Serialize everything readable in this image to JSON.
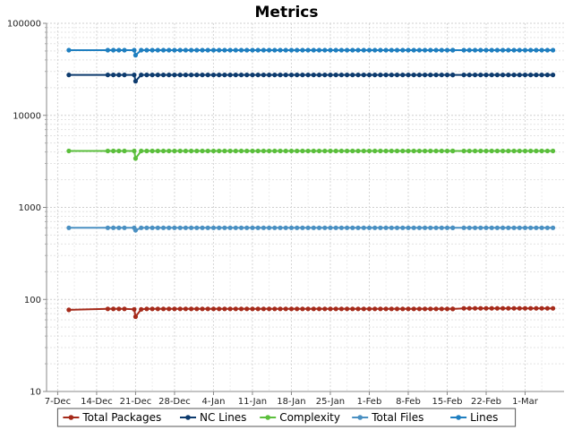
{
  "chart_data": {
    "type": "line",
    "title": "Metrics",
    "xlabel": "",
    "ylabel": "",
    "y_scale": "log",
    "ylim": [
      10,
      100000
    ],
    "xlim": [
      "2009-12-05",
      "2010-03-08"
    ],
    "y_ticks": [
      10,
      100,
      1000,
      10000,
      100000
    ],
    "y_tick_labels": [
      "10",
      "100",
      "1000",
      "10000",
      "100000"
    ],
    "x_ticks": [
      "2009-12-07",
      "2009-12-14",
      "2009-12-21",
      "2009-12-28",
      "2010-01-04",
      "2010-01-11",
      "2010-01-18",
      "2010-01-25",
      "2010-02-01",
      "2010-02-08",
      "2010-02-15",
      "2010-02-22",
      "2010-03-01"
    ],
    "x_tick_labels": [
      "7-Dec",
      "14-Dec",
      "21-Dec",
      "28-Dec",
      "4-Jan",
      "11-Jan",
      "18-Jan",
      "25-Jan",
      "1-Feb",
      "8-Feb",
      "15-Feb",
      "22-Feb",
      "1-Mar"
    ],
    "grid": true,
    "legend_position": "bottom",
    "dip_date": "2009-12-21",
    "series": [
      {
        "name": "Total Packages",
        "color": "#a52a1a",
        "points": [
          [
            "2009-12-09",
            77
          ],
          [
            "2009-12-16",
            79
          ],
          [
            "2009-12-17",
            79
          ],
          [
            "2009-12-18",
            79
          ],
          [
            "2009-12-19",
            79
          ],
          [
            "2009-12-21",
            78
          ],
          [
            "2009-12-21",
            65
          ],
          [
            "2009-12-22",
            78
          ],
          [
            "2009-12-23",
            79
          ],
          [
            "2010-02-16",
            79
          ],
          [
            "2010-02-18",
            80
          ]
        ],
        "daily": [
          [
            "2009-12-23",
            "2010-02-16",
            79
          ],
          [
            "2010-02-18",
            "2010-03-06",
            80
          ]
        ]
      },
      {
        "name": "NC Lines",
        "color": "#0d3b6e",
        "points": [
          [
            "2009-12-09",
            27500
          ],
          [
            "2009-12-16",
            27500
          ],
          [
            "2009-12-17",
            27500
          ],
          [
            "2009-12-18",
            27500
          ],
          [
            "2009-12-19",
            27500
          ],
          [
            "2009-12-21",
            27500
          ],
          [
            "2009-12-21",
            23500
          ],
          [
            "2009-12-22",
            27500
          ],
          [
            "2009-12-23",
            27500
          ],
          [
            "2010-02-16",
            27500
          ],
          [
            "2010-02-18",
            27500
          ]
        ],
        "daily": [
          [
            "2009-12-23",
            "2010-02-16",
            27500
          ],
          [
            "2010-02-18",
            "2010-03-06",
            27500
          ]
        ]
      },
      {
        "name": "Complexity",
        "color": "#5bbf3c",
        "points": [
          [
            "2009-12-09",
            4100
          ],
          [
            "2009-12-16",
            4100
          ],
          [
            "2009-12-17",
            4100
          ],
          [
            "2009-12-18",
            4100
          ],
          [
            "2009-12-19",
            4100
          ],
          [
            "2009-12-21",
            4100
          ],
          [
            "2009-12-21",
            3400
          ],
          [
            "2009-12-22",
            4100
          ],
          [
            "2009-12-23",
            4100
          ],
          [
            "2010-02-16",
            4100
          ],
          [
            "2010-02-18",
            4100
          ]
        ],
        "daily": [
          [
            "2009-12-23",
            "2010-02-16",
            4100
          ],
          [
            "2010-02-18",
            "2010-03-06",
            4100
          ]
        ]
      },
      {
        "name": "Total Files",
        "color": "#4a90c2",
        "points": [
          [
            "2009-12-09",
            600
          ],
          [
            "2009-12-16",
            600
          ],
          [
            "2009-12-17",
            600
          ],
          [
            "2009-12-18",
            600
          ],
          [
            "2009-12-19",
            600
          ],
          [
            "2009-12-21",
            600
          ],
          [
            "2009-12-21",
            565
          ],
          [
            "2009-12-22",
            600
          ],
          [
            "2009-12-23",
            600
          ],
          [
            "2010-02-16",
            600
          ],
          [
            "2010-02-18",
            600
          ]
        ],
        "daily": [
          [
            "2009-12-23",
            "2010-02-16",
            600
          ],
          [
            "2010-02-18",
            "2010-03-06",
            600
          ]
        ]
      },
      {
        "name": "Lines",
        "color": "#1f7fc0",
        "points": [
          [
            "2009-12-09",
            51000
          ],
          [
            "2009-12-16",
            51000
          ],
          [
            "2009-12-17",
            51000
          ],
          [
            "2009-12-18",
            51000
          ],
          [
            "2009-12-19",
            51000
          ],
          [
            "2009-12-21",
            51000
          ],
          [
            "2009-12-21",
            45000
          ],
          [
            "2009-12-22",
            51000
          ],
          [
            "2009-12-23",
            51000
          ],
          [
            "2010-02-16",
            51000
          ],
          [
            "2010-02-18",
            51000
          ]
        ],
        "daily": [
          [
            "2009-12-23",
            "2010-02-16",
            51000
          ],
          [
            "2010-02-18",
            "2010-03-06",
            51000
          ]
        ]
      }
    ]
  }
}
